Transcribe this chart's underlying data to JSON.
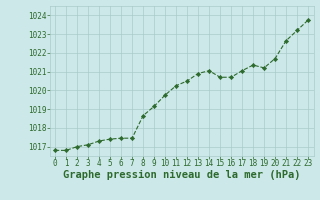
{
  "x": [
    0,
    1,
    2,
    3,
    4,
    5,
    6,
    7,
    8,
    9,
    10,
    11,
    12,
    13,
    14,
    15,
    16,
    17,
    18,
    19,
    20,
    21,
    22,
    23
  ],
  "y": [
    1016.8,
    1016.8,
    1017.0,
    1017.1,
    1017.3,
    1017.4,
    1017.45,
    1017.45,
    1018.65,
    1019.15,
    1019.75,
    1020.25,
    1020.5,
    1020.9,
    1021.05,
    1020.7,
    1020.7,
    1021.05,
    1021.35,
    1021.2,
    1021.7,
    1022.65,
    1023.2,
    1023.75
  ],
  "line_color": "#2d6a2d",
  "marker_color": "#2d6a2d",
  "bg_color": "#cce8e8",
  "grid_color": "#aacaca",
  "xlabel": "Graphe pression niveau de la mer (hPa)",
  "xlabel_color": "#2d6a2d",
  "tick_color": "#2d6a2d",
  "ylim_min": 1016.5,
  "ylim_max": 1024.5,
  "yticks": [
    1017,
    1018,
    1019,
    1020,
    1021,
    1022,
    1023,
    1024
  ],
  "xticks": [
    0,
    1,
    2,
    3,
    4,
    5,
    6,
    7,
    8,
    9,
    10,
    11,
    12,
    13,
    14,
    15,
    16,
    17,
    18,
    19,
    20,
    21,
    22,
    23
  ],
  "tick_fontsize": 5.5,
  "xlabel_fontsize": 7.5
}
